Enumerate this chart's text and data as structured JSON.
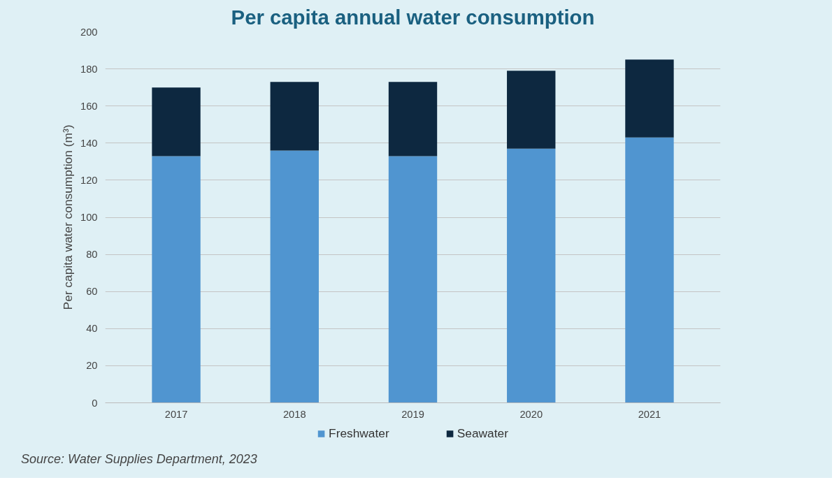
{
  "chart_data": {
    "type": "bar",
    "title": "Per capita annual water consumption",
    "ylabel": "Per capita water consumption (m³)",
    "categories": [
      "2017",
      "2018",
      "2019",
      "2020",
      "2021"
    ],
    "stacked": true,
    "series": [
      {
        "name": "Freshwater",
        "color": "#5095d0",
        "values": [
          133,
          136,
          133,
          137,
          143
        ]
      },
      {
        "name": "Seawater",
        "color": "#0d2840",
        "values": [
          37,
          37,
          40,
          42,
          42
        ]
      }
    ],
    "ylim": [
      0,
      200
    ],
    "yticks": [
      0,
      20,
      40,
      60,
      80,
      100,
      120,
      140,
      160,
      180,
      200
    ],
    "grid": "y",
    "legend": "bottom",
    "annotations": [
      "Source: Water Supplies Department, 2023"
    ]
  }
}
